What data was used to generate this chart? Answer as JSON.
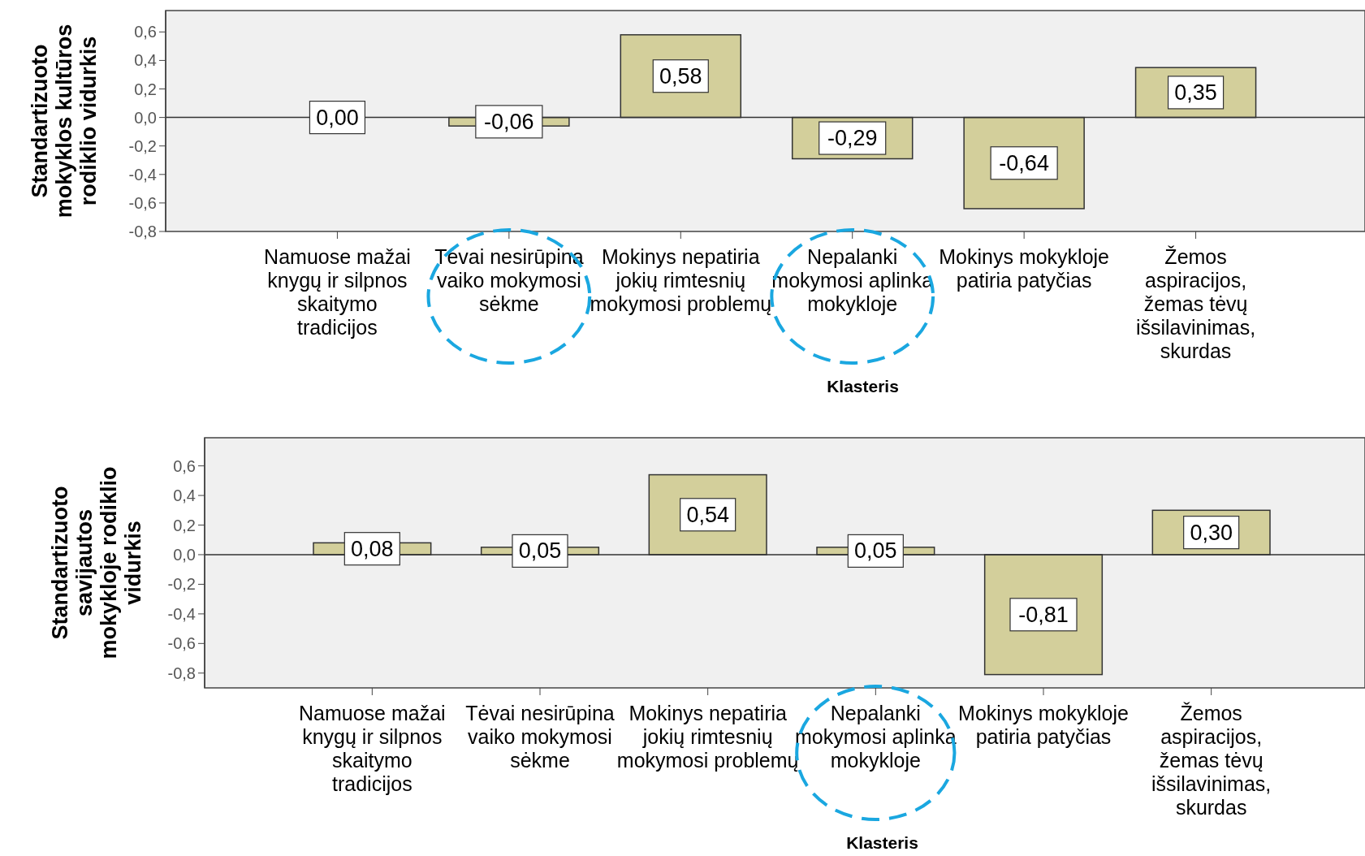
{
  "chart_data": [
    {
      "type": "bar",
      "categories": [
        "Namuose mažai knygų ir silpnos skaitymo tradicijos",
        "Tėvai nesirūpina vaiko mokymosi sėkme",
        "Mokinys nepatiria jokių rimtesnių mokymosi problemų",
        "Nepalanki mokymosi aplinka mokykloje",
        "Mokinys mokykloje patiria patyčias",
        "Žemos aspiracijos, žemas tėvų išsilavinimas, skurdas"
      ],
      "values": [
        0.0,
        -0.06,
        0.58,
        -0.29,
        -0.64,
        0.35
      ],
      "value_labels": [
        "0,00",
        "-0,06",
        "0,58",
        "-0,29",
        "-0,64",
        "0,35"
      ],
      "color": "#d3cf9b",
      "xlabel": "Klasteris",
      "ylabel": "Standartizuoto mokyklos kultūros rodiklio vidurkis",
      "ylim": [
        -0.8,
        0.75
      ],
      "yticks": [
        {
          "value": -0.8,
          "label": "-0,8"
        },
        {
          "value": -0.6,
          "label": "-0,6"
        },
        {
          "value": -0.4,
          "label": "-0,4"
        },
        {
          "value": -0.2,
          "label": "-0,2"
        },
        {
          "value": 0,
          "label": "0,0"
        },
        {
          "value": 0.2,
          "label": "0,2"
        },
        {
          "value": 0.4,
          "label": "0,4"
        },
        {
          "value": 0.6,
          "label": "0,6"
        }
      ],
      "ref_lines": [
        {
          "axis": "y",
          "value": 0
        }
      ],
      "grid": false
    },
    {
      "type": "bar",
      "categories": [
        "Namuose mažai knygų ir silpnos skaitymo tradicijos",
        "Tėvai nesirūpina vaiko mokymosi sėkme",
        "Mokinys nepatiria jokių rimtesnių mokymosi problemų",
        "Nepalanki mokymosi aplinka mokykloje",
        "Mokinys mokykloje patiria patyčias",
        "Žemos aspiracijos, žemas tėvų išsilavinimas, skurdas"
      ],
      "values": [
        0.08,
        0.05,
        0.54,
        0.05,
        -0.81,
        0.3
      ],
      "value_labels": [
        "0,08",
        "0,05",
        "0,54",
        "0,05",
        "-0,81",
        "0,30"
      ],
      "color": "#d3cf9b",
      "xlabel": "Klasteris",
      "ylabel": "Standartizuoto savijautos mokykloje rodiklio vidurkis",
      "ylim": [
        -0.9,
        0.79
      ],
      "yticks": [
        {
          "value": -0.8,
          "label": "-0,8"
        },
        {
          "value": -0.6,
          "label": "-0,6"
        },
        {
          "value": -0.4,
          "label": "-0,4"
        },
        {
          "value": -0.2,
          "label": "-0,2"
        },
        {
          "value": 0,
          "label": "0,0"
        },
        {
          "value": 0.2,
          "label": "0,2"
        },
        {
          "value": 0.4,
          "label": "0,4"
        },
        {
          "value": 0.6,
          "label": "0,6"
        }
      ],
      "ref_lines": [
        {
          "axis": "y",
          "value": 0
        }
      ],
      "grid": false
    }
  ]
}
